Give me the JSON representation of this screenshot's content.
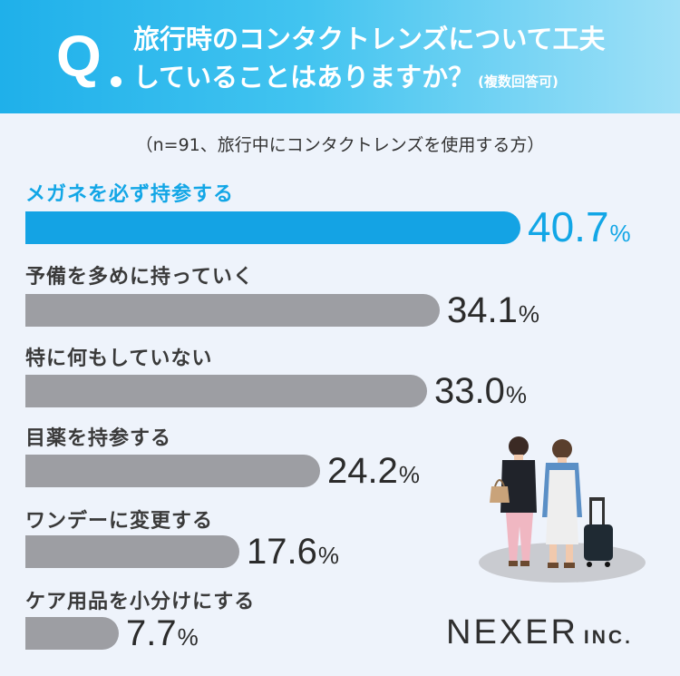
{
  "header": {
    "q_letter": "Q",
    "question_line1": "旅行時のコンタクトレンズについて工夫",
    "question_line2": "していることはありますか？",
    "question_note": "(複数回答可)"
  },
  "subtitle": "（n=91、旅行中にコンタクトレンズを使用する方）",
  "chart_data": {
    "type": "bar",
    "orientation": "horizontal",
    "categories": [
      "メガネを必ず持参する",
      "予備を多めに持っていく",
      "特に何もしていない",
      "目薬を持参する",
      "ワンデーに変更する",
      "ケア用品を小分けにする"
    ],
    "values": [
      40.7,
      34.1,
      33.0,
      24.2,
      17.6,
      7.7
    ],
    "value_labels": [
      "40.7",
      "34.1",
      "33.0",
      "24.2",
      "17.6",
      "7.7"
    ],
    "unit": "%",
    "highlight_index": 0,
    "colors": {
      "highlight": "#14a3e4",
      "default": "#9d9ea3"
    }
  },
  "brand": {
    "name": "NEXER",
    "suffix": "INC."
  },
  "illustration": {
    "name": "two-travelers-with-suitcase"
  }
}
